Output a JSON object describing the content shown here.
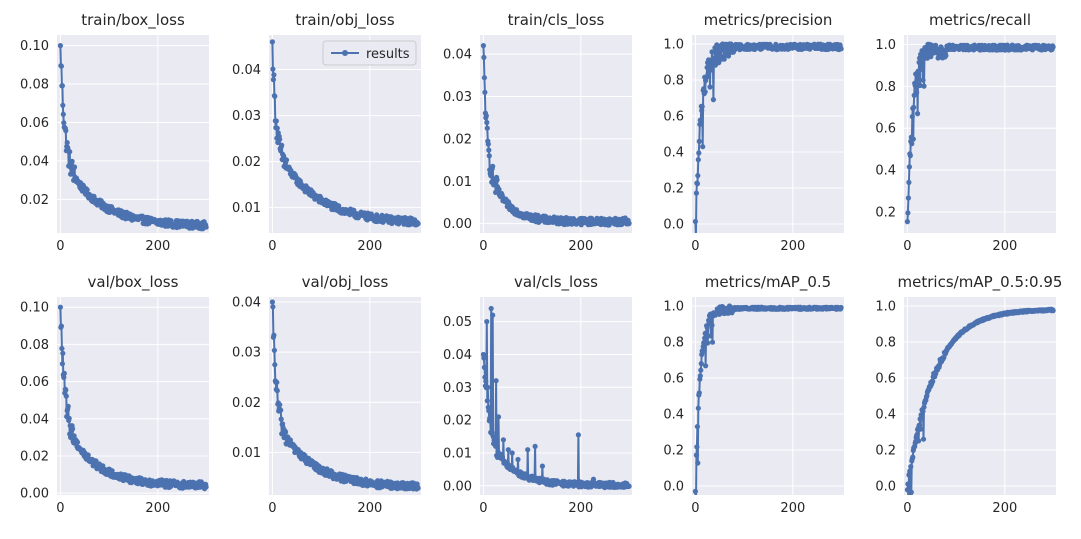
{
  "figure": {
    "legend_label": "results",
    "series_color": "#4c72b0",
    "background": "#eaeaf2"
  },
  "chart_data": [
    {
      "type": "line",
      "title": "train/box_loss",
      "xlim": [
        -7,
        305
      ],
      "ylim": [
        0.0025,
        0.1055
      ],
      "xticks": [
        0,
        200
      ],
      "yticks": [
        0.02,
        0.04,
        0.06,
        0.08,
        0.1
      ],
      "ytick_labels": [
        "0.02",
        "0.04",
        "0.06",
        "0.08",
        "0.10"
      ],
      "profile": "decay",
      "params": {
        "y0": 0.1,
        "yend": 0.006,
        "k": 3.0,
        "wA": 0.6,
        "tau": 8,
        "tau2": 70
      }
    },
    {
      "type": "line",
      "title": "train/obj_loss",
      "xlim": [
        -7,
        305
      ],
      "ylim": [
        0.0045,
        0.0475
      ],
      "xticks": [
        0,
        200
      ],
      "yticks": [
        0.01,
        0.02,
        0.03,
        0.04
      ],
      "ytick_labels": [
        "0.01",
        "0.02",
        "0.03",
        "0.04"
      ],
      "profile": "decay",
      "params": {
        "y0": 0.046,
        "yend": 0.0065,
        "k": 2.2,
        "wA": 0.55,
        "tau": 6,
        "tau2": 80
      },
      "legend": "top-right"
    },
    {
      "type": "line",
      "title": "train/cls_loss",
      "xlim": [
        -7,
        305
      ],
      "ylim": [
        -0.0022,
        0.0445
      ],
      "xticks": [
        0,
        200
      ],
      "yticks": [
        0.0,
        0.01,
        0.02,
        0.03,
        0.04
      ],
      "ytick_labels": [
        "0.00",
        "0.01",
        "0.02",
        "0.03",
        "0.04"
      ],
      "profile": "decay",
      "params": {
        "y0": 0.042,
        "yend": 0.0005,
        "k": 3.0,
        "wA": 0.6,
        "tau": 6,
        "tau2": 35
      }
    },
    {
      "type": "line",
      "title": "metrics/precision",
      "xlim": [
        -7,
        305
      ],
      "ylim": [
        -0.05,
        1.05
      ],
      "xticks": [
        0,
        200
      ],
      "yticks": [
        0.0,
        0.2,
        0.4,
        0.6,
        0.8,
        1.0
      ],
      "ytick_labels": [
        "0.0",
        "0.2",
        "0.4",
        "0.6",
        "0.8",
        "1.0"
      ],
      "profile": "rise",
      "params": {
        "start": 0.0,
        "plateau": 0.99,
        "k": 12,
        "spread": 0.05
      }
    },
    {
      "type": "line",
      "title": "metrics/recall",
      "xlim": [
        -7,
        305
      ],
      "ylim": [
        0.1,
        1.045
      ],
      "xticks": [
        0,
        200
      ],
      "yticks": [
        0.2,
        0.4,
        0.6,
        0.8,
        1.0
      ],
      "ytick_labels": [
        "0.2",
        "0.4",
        "0.6",
        "0.8",
        "1.0"
      ],
      "profile": "rise",
      "params": {
        "start": 0.14,
        "plateau": 0.99,
        "k": 10,
        "spread": 0.04
      }
    },
    {
      "type": "line",
      "title": "val/box_loss",
      "xlim": [
        -7,
        305
      ],
      "ylim": [
        -0.001,
        0.1055
      ],
      "xticks": [
        0,
        200
      ],
      "yticks": [
        0.0,
        0.02,
        0.04,
        0.06,
        0.08,
        0.1
      ],
      "ytick_labels": [
        "0.00",
        "0.02",
        "0.04",
        "0.06",
        "0.08",
        "0.10"
      ],
      "profile": "decay",
      "params": {
        "y0": 0.1,
        "yend": 0.004,
        "k": 2.8,
        "wA": 0.6,
        "tau": 8,
        "tau2": 60
      }
    },
    {
      "type": "line",
      "title": "val/obj_loss",
      "xlim": [
        -7,
        305
      ],
      "ylim": [
        0.0015,
        0.041
      ],
      "xticks": [
        0,
        200
      ],
      "yticks": [
        0.01,
        0.02,
        0.03,
        0.04
      ],
      "ytick_labels": [
        "0.01",
        "0.02",
        "0.03",
        "0.04"
      ],
      "profile": "decay",
      "params": {
        "y0": 0.04,
        "yend": 0.003,
        "k": 2.6,
        "wA": 0.6,
        "tau": 7,
        "tau2": 70
      }
    },
    {
      "type": "line",
      "title": "val/cls_loss",
      "xlim": [
        -7,
        305
      ],
      "ylim": [
        -0.0028,
        0.0575
      ],
      "xticks": [
        0,
        200
      ],
      "yticks": [
        0.0,
        0.01,
        0.02,
        0.03,
        0.04,
        0.05
      ],
      "ytick_labels": [
        "0.00",
        "0.01",
        "0.02",
        "0.03",
        "0.04",
        "0.05"
      ],
      "profile": "decay",
      "params": {
        "y0": 0.04,
        "yend": 0.0002,
        "k": 1.5,
        "wA": 0.55,
        "tau": 10,
        "tau2": 45
      },
      "spikes": [
        [
          7,
          0.05
        ],
        [
          9,
          0.03
        ],
        [
          16,
          0.054
        ],
        [
          19,
          0.052
        ],
        [
          26,
          0.032
        ],
        [
          31,
          0.021
        ],
        [
          41,
          0.014
        ],
        [
          51,
          0.011
        ],
        [
          59,
          0.01
        ],
        [
          71,
          0.008
        ],
        [
          91,
          0.011
        ],
        [
          106,
          0.012
        ],
        [
          121,
          0.006
        ],
        [
          195,
          0.0155
        ],
        [
          226,
          0.002
        ]
      ]
    },
    {
      "type": "line",
      "title": "metrics/mAP_0.5",
      "xlim": [
        -7,
        305
      ],
      "ylim": [
        -0.05,
        1.05
      ],
      "xticks": [
        0,
        200
      ],
      "yticks": [
        0.0,
        0.2,
        0.4,
        0.6,
        0.8,
        1.0
      ],
      "ytick_labels": [
        "0.0",
        "0.2",
        "0.4",
        "0.6",
        "0.8",
        "1.0"
      ],
      "profile": "rise",
      "params": {
        "start": 0.0,
        "plateau": 0.99,
        "k": 10,
        "spread": 0.02
      }
    },
    {
      "type": "line",
      "title": "metrics/mAP_0.5:0.95",
      "xlim": [
        -7,
        305
      ],
      "ylim": [
        -0.05,
        1.05
      ],
      "xticks": [
        0,
        200
      ],
      "yticks": [
        0.0,
        0.2,
        0.4,
        0.6,
        0.8,
        1.0
      ],
      "ytick_labels": [
        "0.0",
        "0.2",
        "0.4",
        "0.6",
        "0.8",
        "1.0"
      ],
      "profile": "rise",
      "params": {
        "start": 0.0,
        "plateau": 0.985,
        "k": 55,
        "spread": 0.015
      }
    }
  ]
}
